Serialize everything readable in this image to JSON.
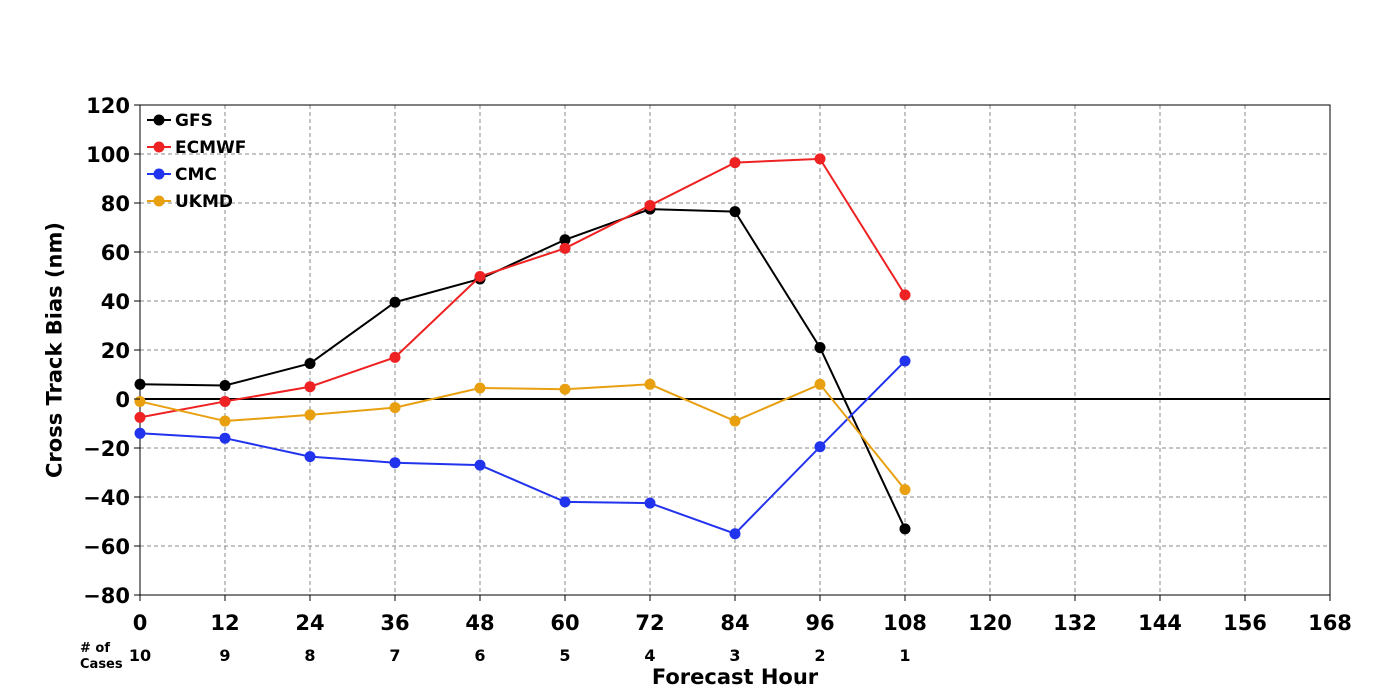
{
  "chart_data": {
    "type": "line",
    "title": "",
    "xlabel": "Forecast Hour",
    "ylabel": "Cross Track Bias (nm)",
    "xlim": [
      0,
      168
    ],
    "ylim": [
      -80,
      120
    ],
    "xticks": [
      "0",
      "12",
      "24",
      "36",
      "48",
      "60",
      "72",
      "84",
      "96",
      "108",
      "120",
      "132",
      "144",
      "156",
      "168"
    ],
    "yticks": [
      "120",
      "100",
      "80",
      "60",
      "40",
      "20",
      "0",
      "−20",
      "−40",
      "−60",
      "−80"
    ],
    "grid": true,
    "legend_position": "top-left",
    "cases_title_line1": "# of",
    "cases_title_line2": "Cases",
    "cases": [
      {
        "x": 0,
        "label": "10"
      },
      {
        "x": 12,
        "label": "9"
      },
      {
        "x": 24,
        "label": "8"
      },
      {
        "x": 36,
        "label": "7"
      },
      {
        "x": 48,
        "label": "6"
      },
      {
        "x": 60,
        "label": "5"
      },
      {
        "x": 72,
        "label": "4"
      },
      {
        "x": 84,
        "label": "3"
      },
      {
        "x": 96,
        "label": "2"
      },
      {
        "x": 108,
        "label": "1"
      }
    ],
    "x": [
      0,
      12,
      24,
      36,
      48,
      60,
      72,
      84,
      96,
      108
    ],
    "series": [
      {
        "name": "GFS",
        "color": "#000000",
        "values": [
          6,
          5.5,
          14.5,
          39.5,
          49,
          65,
          77.5,
          76.5,
          21,
          -53
        ]
      },
      {
        "name": "ECMWF",
        "color": "#ee2222",
        "values": [
          -7.5,
          -1,
          5,
          17,
          50,
          61.5,
          79,
          96.5,
          98,
          42.5
        ]
      },
      {
        "name": "CMC",
        "color": "#2233ee",
        "values": [
          -14,
          -16,
          -23.5,
          -26,
          -27,
          -42,
          -42.5,
          -55,
          -19.5,
          15.5
        ]
      },
      {
        "name": "UKMD",
        "color": "#e8a010",
        "values": [
          -1,
          -9,
          -6.5,
          -3.5,
          4.5,
          4,
          6,
          -9,
          6,
          -37
        ]
      }
    ]
  }
}
